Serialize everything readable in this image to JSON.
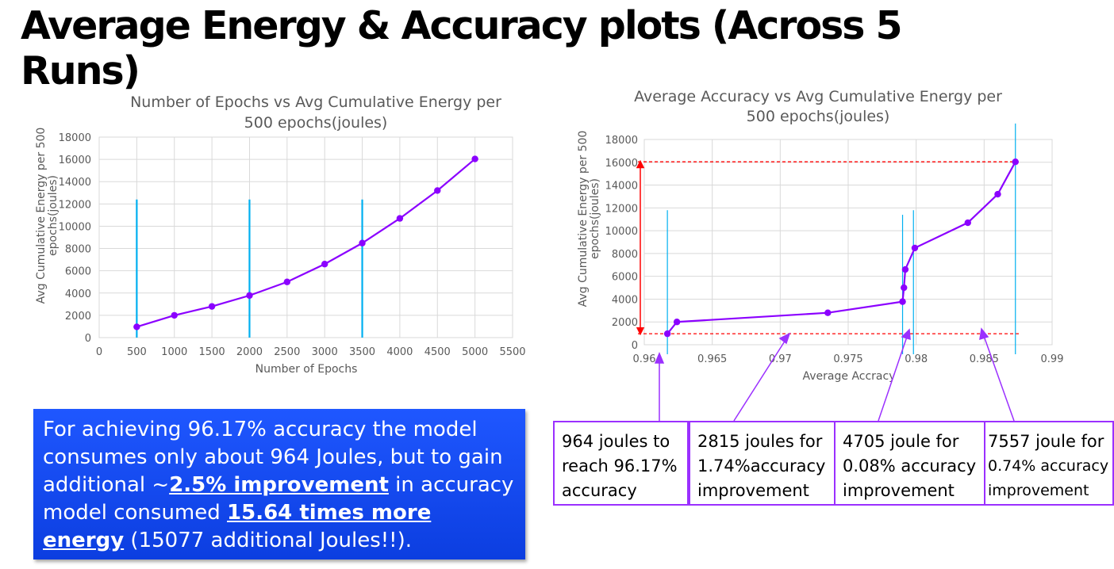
{
  "slide_title": "Average Energy & Accuracy plots (Across 5 Runs)",
  "chart_data": [
    {
      "type": "scatter",
      "title_lines": [
        "Number of Epochs vs Avg Cumulative Energy per",
        "500 epochs(joules)"
      ],
      "xlabel": "Number of Epochs",
      "ylabel_lines": [
        "Avg Cumulative Energy per 500",
        "epochs(joules)"
      ],
      "xlim": [
        0,
        5500
      ],
      "ylim": [
        0,
        18000
      ],
      "xticks": [
        0,
        500,
        1000,
        1500,
        2000,
        2500,
        3000,
        3500,
        4000,
        4500,
        5000,
        5500
      ],
      "yticks": [
        0,
        2000,
        4000,
        6000,
        8000,
        10000,
        12000,
        14000,
        16000,
        18000
      ],
      "grid": true,
      "series": [
        {
          "x": [
            500,
            1000,
            1500,
            2000,
            2500,
            3000,
            3500,
            4000,
            4500,
            5000
          ],
          "y": [
            964,
            2000,
            2800,
            3779,
            5000,
            6600,
            8484,
            10700,
            13200,
            16041
          ],
          "color": "#8b00ff"
        }
      ],
      "vertical_markers": [
        {
          "x": 500,
          "y_top": 12400,
          "color": "#00b0f0"
        },
        {
          "x": 2000,
          "y_top": 12400,
          "color": "#00b0f0"
        },
        {
          "x": 3500,
          "y_top": 12400,
          "color": "#00b0f0"
        }
      ]
    },
    {
      "type": "scatter",
      "title_lines": [
        "Average Accuracy vs Avg Cumulative Energy per",
        "500 epochs(joules)"
      ],
      "xlabel": "Average Accracy",
      "ylabel_lines": [
        "Avg Cumulative Energy per 500",
        "epochs(joules)"
      ],
      "xlim": [
        0.96,
        0.99
      ],
      "ylim": [
        0,
        18000
      ],
      "xticks": [
        0.96,
        0.965,
        0.97,
        0.975,
        0.98,
        0.985,
        0.99
      ],
      "xtick_labels": [
        "0.96",
        "0.965",
        "0.97",
        "0.975",
        "0.98",
        "0.985",
        "0.99"
      ],
      "yticks": [
        0,
        2000,
        4000,
        6000,
        8000,
        10000,
        12000,
        14000,
        16000,
        18000
      ],
      "grid": true,
      "series": [
        {
          "x": [
            0.9617,
            0.9624,
            0.9735,
            0.979,
            0.9791,
            0.9792,
            0.9799,
            0.9838,
            0.986,
            0.9873
          ],
          "y": [
            964,
            2000,
            2800,
            3779,
            5000,
            6600,
            8484,
            10700,
            13200,
            16041
          ],
          "color": "#8b00ff"
        }
      ],
      "vertical_markers": [
        {
          "x": 0.9617,
          "y_top": 11800,
          "color": "#00b0f0"
        },
        {
          "x": 0.979,
          "y_top": 11400,
          "color": "#00b0f0"
        },
        {
          "x": 0.9798,
          "y_top": 11800,
          "color": "#00b0f0"
        },
        {
          "x": 0.9873,
          "y_top": 19400,
          "color": "#00b0f0"
        }
      ],
      "reference_lines": [
        {
          "y": 964,
          "color": "#ff0000"
        },
        {
          "y": 16041,
          "color": "#ff0000"
        }
      ]
    }
  ],
  "callout": {
    "part1": "For achieving 96.17% accuracy the model consumes only about 964 Joules, but to gain additional ~",
    "em1": "2.5% improvement",
    "part2": " in accuracy model consumed ",
    "em2": "15.64 times more energy",
    "part3": " (15077 additional Joules!!)."
  },
  "notes": [
    {
      "lines": [
        "964 joules to",
        "reach 96.17%",
        "accuracy"
      ]
    },
    {
      "lines": [
        "2815 joules for",
        "1.74%accuracy",
        "improvement"
      ]
    },
    {
      "lines": [
        "4705 joule for",
        "0.08% accuracy",
        "improvement"
      ]
    },
    {
      "lines": [
        "7557 joule for",
        "0.74% accuracy",
        "improvement"
      ]
    }
  ],
  "colors": {
    "series": "#8b00ff",
    "marker": "#00b0f0",
    "reference": "#ff0000",
    "callout_bg": "#1a4cf5",
    "note_border": "#9b30ff"
  }
}
